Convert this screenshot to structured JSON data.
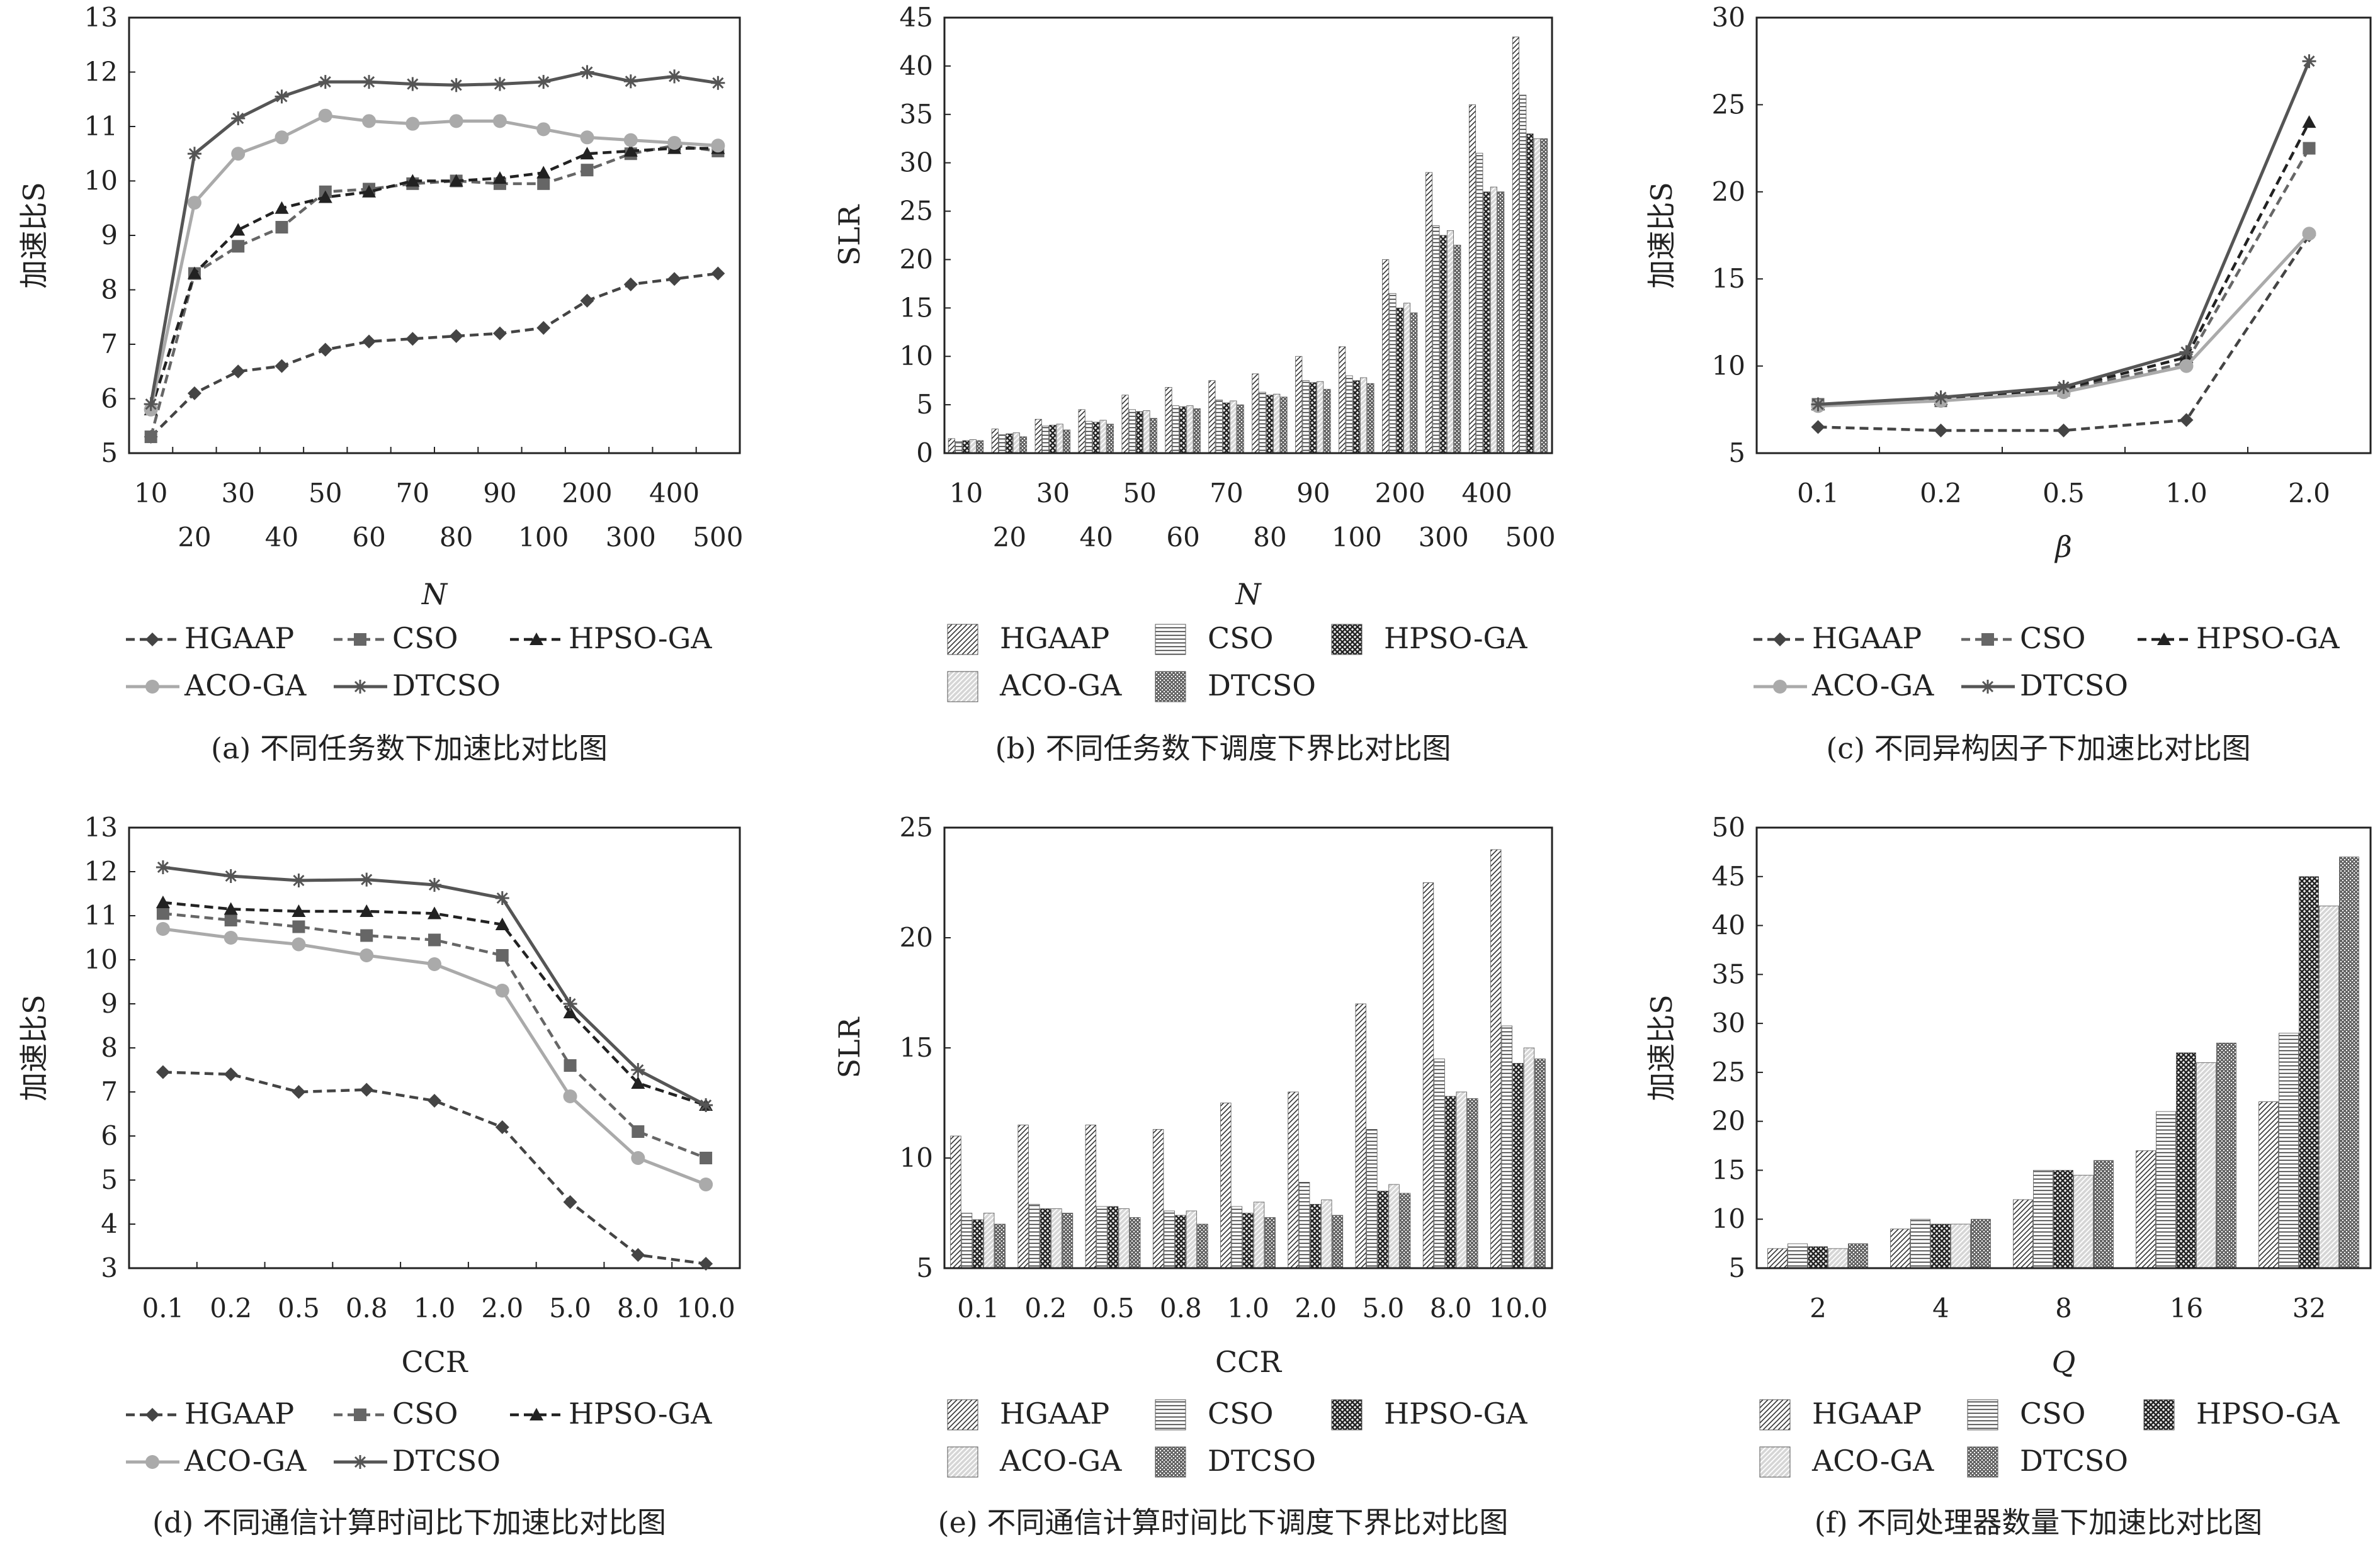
{
  "legend_labels": [
    "HGAAP",
    "CSO",
    "HPSO-GA",
    "ACO-GA",
    "DTCSO"
  ],
  "colors": {
    "HGAAP": "#444444",
    "CSO": "#666666",
    "HPSO-GA": "#222222",
    "ACO-GA": "#aaaaaa",
    "DTCSO": "#555555",
    "axis": "#222222",
    "text": "#222222"
  },
  "chart_data": [
    {
      "id": "a",
      "type": "line",
      "caption": "(a) 不同任务数下加速比对比图",
      "xlabel": "N",
      "xlabel_italic": true,
      "ylabel": "加速比S",
      "categories": [
        "10",
        "20",
        "30",
        "40",
        "50",
        "60",
        "70",
        "80",
        "90",
        "100",
        "200",
        "300",
        "400",
        "500"
      ],
      "ylim": [
        5,
        13
      ],
      "yticks": [
        5,
        6,
        7,
        8,
        9,
        10,
        11,
        12,
        13
      ],
      "series": [
        {
          "name": "HGAAP",
          "values": [
            5.3,
            6.1,
            6.5,
            6.6,
            6.9,
            7.05,
            7.1,
            7.15,
            7.2,
            7.3,
            7.8,
            8.1,
            8.2,
            8.3
          ]
        },
        {
          "name": "CSO",
          "values": [
            5.3,
            8.3,
            8.8,
            9.15,
            9.8,
            9.85,
            9.95,
            10.0,
            9.95,
            9.95,
            10.2,
            10.5,
            10.65,
            10.55
          ]
        },
        {
          "name": "HPSO-GA",
          "values": [
            5.8,
            8.3,
            9.1,
            9.5,
            9.7,
            9.8,
            10.0,
            10.0,
            10.05,
            10.15,
            10.5,
            10.55,
            10.6,
            10.6
          ]
        },
        {
          "name": "ACO-GA",
          "values": [
            5.8,
            9.6,
            10.5,
            10.8,
            11.2,
            11.1,
            11.05,
            11.1,
            11.1,
            10.95,
            10.8,
            10.75,
            10.7,
            10.65
          ]
        },
        {
          "name": "DTCSO",
          "values": [
            5.9,
            10.5,
            11.15,
            11.55,
            11.82,
            11.82,
            11.78,
            11.76,
            11.78,
            11.82,
            12.0,
            11.83,
            11.92,
            11.8
          ]
        }
      ]
    },
    {
      "id": "b",
      "type": "bar",
      "caption": "(b) 不同任务数下调度下界比对比图",
      "xlabel": "N",
      "xlabel_italic": true,
      "ylabel": "SLR",
      "categories": [
        "10",
        "20",
        "30",
        "40",
        "50",
        "60",
        "70",
        "80",
        "90",
        "100",
        "200",
        "300",
        "400",
        "500"
      ],
      "ylim": [
        0,
        45
      ],
      "yticks": [
        0,
        5,
        10,
        15,
        20,
        25,
        30,
        35,
        40,
        45
      ],
      "series": [
        {
          "name": "HGAAP",
          "values": [
            1.5,
            2.5,
            3.5,
            4.5,
            6.0,
            6.8,
            7.5,
            8.2,
            10.0,
            11.0,
            20.0,
            29.0,
            36.0,
            43.0
          ]
        },
        {
          "name": "CSO",
          "values": [
            1.2,
            1.9,
            2.8,
            3.3,
            4.5,
            4.9,
            5.5,
            6.3,
            7.5,
            8.0,
            16.5,
            23.5,
            31.0,
            37.0
          ]
        },
        {
          "name": "HPSO-GA",
          "values": [
            1.3,
            2.0,
            2.9,
            3.2,
            4.3,
            4.8,
            5.2,
            6.0,
            7.3,
            7.5,
            15.0,
            22.5,
            27.0,
            33.0
          ]
        },
        {
          "name": "ACO-GA",
          "values": [
            1.4,
            2.1,
            3.0,
            3.4,
            4.4,
            4.9,
            5.4,
            6.1,
            7.4,
            7.8,
            15.5,
            23.0,
            27.5,
            32.5
          ]
        },
        {
          "name": "DTCSO",
          "values": [
            1.3,
            1.7,
            2.4,
            3.0,
            3.6,
            4.6,
            5.0,
            5.8,
            6.6,
            7.2,
            14.5,
            21.5,
            27.0,
            32.5
          ]
        }
      ]
    },
    {
      "id": "c",
      "type": "line",
      "caption": "(c) 不同异构因子下加速比对比图",
      "xlabel": "β",
      "xlabel_italic": true,
      "ylabel": "加速比S",
      "categories": [
        "0.1",
        "0.2",
        "0.5",
        "1.0",
        "2.0"
      ],
      "ylim": [
        5,
        30
      ],
      "yticks": [
        5,
        10,
        15,
        20,
        25,
        30
      ],
      "series": [
        {
          "name": "HGAAP",
          "values": [
            6.5,
            6.3,
            6.3,
            6.9,
            17.5
          ]
        },
        {
          "name": "CSO",
          "values": [
            7.8,
            8.0,
            8.6,
            10.2,
            22.5
          ]
        },
        {
          "name": "HPSO-GA",
          "values": [
            7.8,
            8.1,
            8.7,
            10.5,
            24.0
          ]
        },
        {
          "name": "ACO-GA",
          "values": [
            7.7,
            8.0,
            8.5,
            10.0,
            17.6
          ]
        },
        {
          "name": "DTCSO",
          "values": [
            7.8,
            8.2,
            8.8,
            10.8,
            27.5
          ]
        }
      ]
    },
    {
      "id": "d",
      "type": "line",
      "caption": "(d) 不同通信计算时间比下加速比对比图",
      "xlabel": "CCR",
      "xlabel_italic": false,
      "ylabel": "加速比S",
      "categories": [
        "0.1",
        "0.2",
        "0.5",
        "0.8",
        "1.0",
        "2.0",
        "5.0",
        "8.0",
        "10.0"
      ],
      "ylim": [
        3,
        13
      ],
      "yticks": [
        3,
        4,
        5,
        6,
        7,
        8,
        9,
        10,
        11,
        12,
        13
      ],
      "series": [
        {
          "name": "HGAAP",
          "values": [
            7.45,
            7.4,
            7.0,
            7.05,
            6.8,
            6.2,
            4.5,
            3.3,
            3.1
          ]
        },
        {
          "name": "CSO",
          "values": [
            11.05,
            10.9,
            10.75,
            10.55,
            10.45,
            10.1,
            7.6,
            6.1,
            5.5
          ]
        },
        {
          "name": "HPSO-GA",
          "values": [
            11.3,
            11.15,
            11.1,
            11.1,
            11.05,
            10.8,
            8.8,
            7.2,
            6.7
          ]
        },
        {
          "name": "ACO-GA",
          "values": [
            10.7,
            10.5,
            10.35,
            10.1,
            9.9,
            9.3,
            6.9,
            5.5,
            4.9
          ]
        },
        {
          "name": "DTCSO",
          "values": [
            12.1,
            11.9,
            11.8,
            11.82,
            11.7,
            11.4,
            9.0,
            7.5,
            6.7
          ]
        }
      ]
    },
    {
      "id": "e",
      "type": "bar",
      "caption": "(e) 不同通信计算时间比下调度下界比对比图",
      "xlabel": "CCR",
      "xlabel_italic": false,
      "ylabel": "SLR",
      "categories": [
        "0.1",
        "0.2",
        "0.5",
        "0.8",
        "1.0",
        "2.0",
        "5.0",
        "8.0",
        "10.0"
      ],
      "ylim": [
        5,
        25
      ],
      "yticks": [
        5,
        10,
        15,
        20,
        25
      ],
      "series": [
        {
          "name": "HGAAP",
          "values": [
            11.0,
            11.5,
            11.5,
            11.3,
            12.5,
            13.0,
            17.0,
            22.5,
            24.0
          ]
        },
        {
          "name": "CSO",
          "values": [
            7.5,
            7.9,
            7.8,
            7.6,
            7.8,
            8.9,
            11.3,
            14.5,
            16.0
          ]
        },
        {
          "name": "HPSO-GA",
          "values": [
            7.2,
            7.7,
            7.8,
            7.4,
            7.5,
            7.9,
            8.5,
            12.8,
            14.3
          ]
        },
        {
          "name": "ACO-GA",
          "values": [
            7.5,
            7.7,
            7.7,
            7.6,
            8.0,
            8.1,
            8.8,
            13.0,
            15.0
          ]
        },
        {
          "name": "DTCSO",
          "values": [
            7.0,
            7.5,
            7.3,
            7.0,
            7.3,
            7.4,
            8.4,
            12.7,
            14.5
          ]
        }
      ]
    },
    {
      "id": "f",
      "type": "bar",
      "caption": "(f) 不同处理器数量下加速比对比图",
      "xlabel": "Q",
      "xlabel_italic": true,
      "ylabel": "加速比S",
      "categories": [
        "2",
        "4",
        "8",
        "16",
        "32"
      ],
      "ylim": [
        5,
        50
      ],
      "yticks": [
        5,
        10,
        15,
        20,
        25,
        30,
        35,
        40,
        45,
        50
      ],
      "series": [
        {
          "name": "HGAAP",
          "values": [
            7.0,
            9.0,
            12.0,
            17.0,
            22.0
          ]
        },
        {
          "name": "CSO",
          "values": [
            7.5,
            10.0,
            15.0,
            21.0,
            29.0
          ]
        },
        {
          "name": "HPSO-GA",
          "values": [
            7.2,
            9.5,
            15.0,
            27.0,
            45.0
          ]
        },
        {
          "name": "ACO-GA",
          "values": [
            7.0,
            9.5,
            14.5,
            26.0,
            42.0
          ]
        },
        {
          "name": "DTCSO",
          "values": [
            7.5,
            10.0,
            16.0,
            28.0,
            47.0
          ]
        }
      ]
    }
  ]
}
